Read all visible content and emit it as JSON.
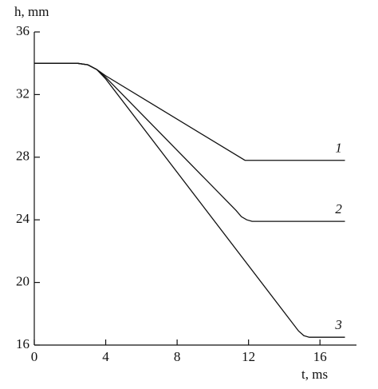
{
  "chart_data": {
    "type": "line",
    "xlabel": "t, ms",
    "ylabel": "h, mm",
    "xlim": [
      0,
      18
    ],
    "ylim": [
      16,
      36
    ],
    "xticks": [
      0,
      4,
      8,
      12,
      16
    ],
    "yticks": [
      16,
      20,
      24,
      28,
      32,
      36
    ],
    "color": "#111111",
    "series": [
      {
        "name": "1",
        "x": [
          0,
          2.4,
          3.0,
          3.5,
          4.0,
          11.8,
          17.4
        ],
        "values": [
          34,
          34,
          33.9,
          33.6,
          33.2,
          27.8,
          27.8
        ]
      },
      {
        "name": "2",
        "x": [
          0,
          2.4,
          3.0,
          3.5,
          4.0,
          11.3,
          11.6,
          11.9,
          12.2,
          17.4
        ],
        "values": [
          34,
          34,
          33.9,
          33.6,
          33.1,
          24.6,
          24.2,
          24.0,
          23.9,
          23.9
        ]
      },
      {
        "name": "3",
        "x": [
          0,
          2.4,
          3.0,
          3.5,
          4.0,
          14.8,
          15.1,
          15.4,
          15.8,
          17.4
        ],
        "values": [
          34,
          34,
          33.9,
          33.6,
          33.0,
          16.9,
          16.6,
          16.5,
          16.5,
          16.5
        ]
      }
    ]
  }
}
